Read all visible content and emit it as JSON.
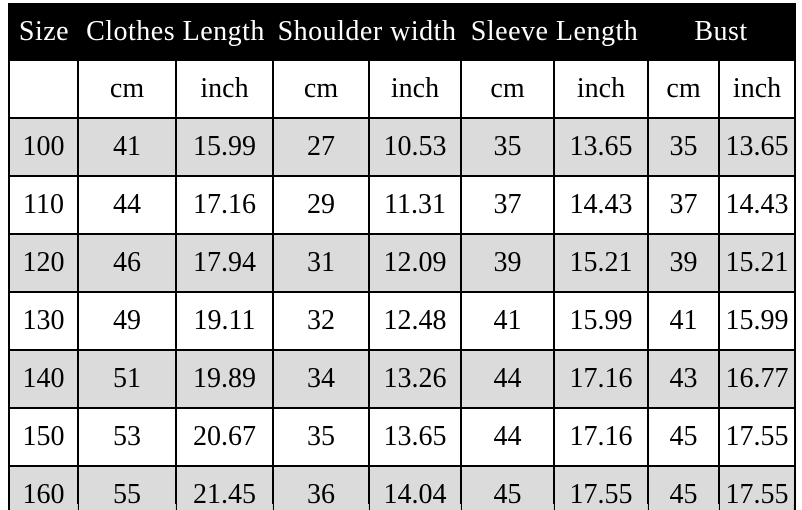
{
  "chart_data": {
    "type": "table",
    "header_groups": [
      {
        "label": "Size",
        "span": 1
      },
      {
        "label": "Clothes Length",
        "span": 2
      },
      {
        "label": "Shoulder width",
        "span": 2
      },
      {
        "label": "Sleeve Length",
        "span": 2
      },
      {
        "label": "Bust",
        "span": 2
      }
    ],
    "unit_row": [
      "",
      "cm",
      "inch",
      "cm",
      "inch",
      "cm",
      "inch",
      "cm",
      "inch"
    ],
    "rows": [
      [
        "100",
        "41",
        "15.99",
        "27",
        "10.53",
        "35",
        "13.65",
        "35",
        "13.65"
      ],
      [
        "110",
        "44",
        "17.16",
        "29",
        "11.31",
        "37",
        "14.43",
        "37",
        "14.43"
      ],
      [
        "120",
        "46",
        "17.94",
        "31",
        "12.09",
        "39",
        "15.21",
        "39",
        "15.21"
      ],
      [
        "130",
        "49",
        "19.11",
        "32",
        "12.48",
        "41",
        "15.99",
        "41",
        "15.99"
      ],
      [
        "140",
        "51",
        "19.89",
        "34",
        "13.26",
        "44",
        "17.16",
        "43",
        "16.77"
      ],
      [
        "150",
        "53",
        "20.67",
        "35",
        "13.65",
        "44",
        "17.16",
        "45",
        "17.55"
      ],
      [
        "160",
        "55",
        "21.45",
        "36",
        "14.04",
        "45",
        "17.55",
        "45",
        "17.55"
      ]
    ],
    "shaded_row_indexes": [
      0,
      2,
      4,
      6
    ],
    "legend_position": "none",
    "grid": true
  },
  "colors": {
    "header_bg": "#000000",
    "header_text": "#ffffff",
    "shaded_row_bg": "#dbdbdb",
    "plain_row_bg": "#ffffff",
    "grid_line": "#000000",
    "ghost_line": "#c9c9c9"
  }
}
